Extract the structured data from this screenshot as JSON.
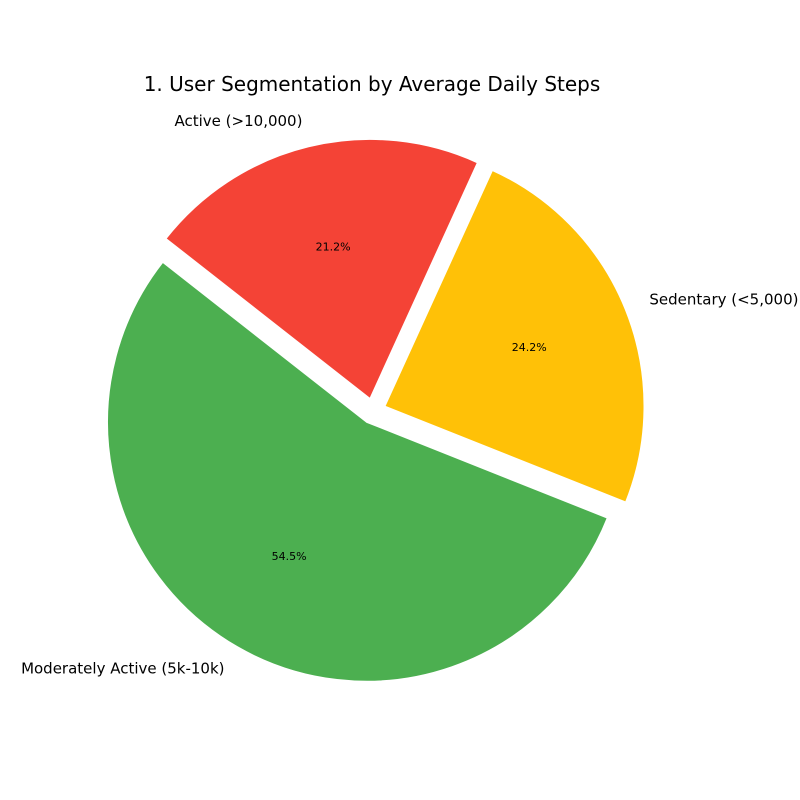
{
  "chart_data": {
    "type": "pie",
    "title": "1. User Segmentation by Average Daily Steps",
    "slices": [
      {
        "label": "Sedentary (<5,000)",
        "value": 24.2,
        "pct_label": "24.2%",
        "color": "#FFC107"
      },
      {
        "label": "Moderately Active (5k-10k)",
        "value": 54.5,
        "pct_label": "54.5%",
        "color": "#4CAF50"
      },
      {
        "label": "Active (>10,000)",
        "value": 21.2,
        "pct_label": "21.2%",
        "color": "#F44336"
      }
    ],
    "start_angle_deg": 65.5,
    "direction": "clockwise",
    "exploded": true,
    "legend": "none"
  }
}
